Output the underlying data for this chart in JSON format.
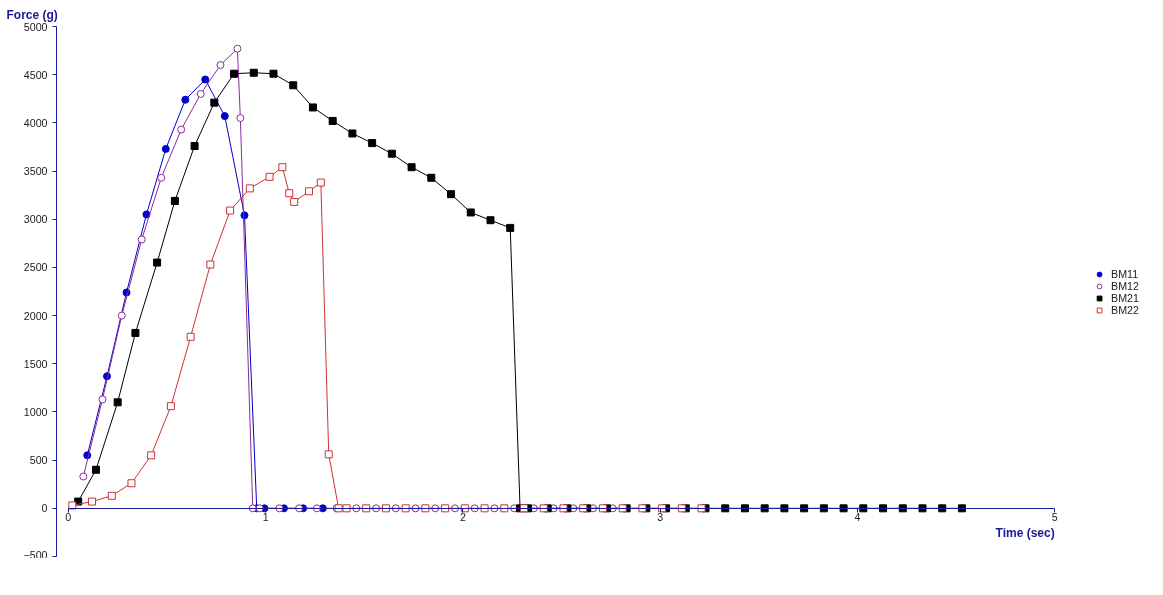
{
  "chart_data": {
    "type": "line",
    "xlabel": "Time (sec)",
    "ylabel": "Force (g)",
    "xlim": [
      0,
      5
    ],
    "ylim": [
      -500,
      5000
    ],
    "xticks": [
      0,
      1,
      2,
      3,
      4,
      5
    ],
    "yticks": [
      -500,
      0,
      500,
      1000,
      1500,
      2000,
      2500,
      3000,
      3500,
      4000,
      4500,
      5000
    ],
    "grid": false,
    "legend": "right",
    "series": [
      {
        "name": "BM11",
        "color": "#0000cc",
        "marker": "circle",
        "x": [
          0.096,
          0.196,
          0.295,
          0.396,
          0.494,
          0.593,
          0.694,
          0.793,
          0.893,
          0.955,
          0.994,
          1.093,
          1.19,
          1.29
        ],
        "values": [
          550,
          1370,
          2240,
          3050,
          3730,
          4240,
          4450,
          4070,
          3040,
          0,
          0,
          0,
          0,
          0
        ]
      },
      {
        "name": "BM12",
        "color": "#8b2c9b",
        "marker": "circle_open",
        "x": [
          0.076,
          0.173,
          0.271,
          0.372,
          0.471,
          0.572,
          0.671,
          0.771,
          0.857,
          0.872,
          0.935,
          0.97,
          1.07,
          1.17,
          1.26,
          1.36,
          1.46,
          1.56,
          1.66,
          1.76,
          1.86,
          1.96,
          2.06,
          2.16,
          2.26,
          2.36,
          2.46,
          2.56,
          2.66,
          2.76
        ],
        "values": [
          330,
          1130,
          2000,
          2790,
          3430,
          3930,
          4300,
          4600,
          4770,
          4050,
          0,
          0,
          0,
          0,
          0,
          0,
          0,
          0,
          0,
          0,
          0,
          0,
          0,
          0,
          0,
          0,
          0,
          0,
          0,
          0
        ]
      },
      {
        "name": "BM21",
        "color": "#000000",
        "marker": "square",
        "x": [
          0.05,
          0.14,
          0.25,
          0.34,
          0.45,
          0.54,
          0.64,
          0.74,
          0.84,
          0.94,
          1.04,
          1.14,
          1.24,
          1.34,
          1.44,
          1.54,
          1.64,
          1.74,
          1.84,
          1.94,
          2.04,
          2.14,
          2.24,
          2.29,
          2.33,
          2.43,
          2.53,
          2.63,
          2.73,
          2.83,
          2.93,
          3.03,
          3.13,
          3.23,
          3.33,
          3.43,
          3.53,
          3.63,
          3.73,
          3.83,
          3.93,
          4.03,
          4.13,
          4.23,
          4.33,
          4.43,
          4.53
        ],
        "values": [
          70,
          400,
          1100,
          1820,
          2550,
          3190,
          3760,
          4210,
          4510,
          4520,
          4510,
          4390,
          4160,
          4020,
          3890,
          3790,
          3680,
          3540,
          3430,
          3260,
          3070,
          2990,
          2910,
          0,
          0,
          0,
          0,
          0,
          0,
          0,
          0,
          0,
          0,
          0,
          0,
          0,
          0,
          0,
          0,
          0,
          0,
          0,
          0,
          0,
          0,
          0,
          0
        ]
      },
      {
        "name": "BM22",
        "color": "#cc3333",
        "marker": "square_open",
        "x": [
          0.02,
          0.12,
          0.22,
          0.32,
          0.42,
          0.52,
          0.62,
          0.72,
          0.82,
          0.92,
          1.02,
          1.085,
          1.12,
          1.145,
          1.22,
          1.28,
          1.32,
          1.37,
          1.41,
          1.51,
          1.61,
          1.71,
          1.81,
          1.91,
          2.01,
          2.11,
          2.21,
          2.31,
          2.41,
          2.51,
          2.61,
          2.71,
          2.81,
          2.91,
          3.01,
          3.11,
          3.21
        ],
        "values": [
          30,
          70,
          130,
          260,
          550,
          1060,
          1780,
          2530,
          3090,
          3320,
          3440,
          3540,
          3270,
          3180,
          3290,
          3380,
          560,
          0,
          0,
          0,
          0,
          0,
          0,
          0,
          0,
          0,
          0,
          0,
          0,
          0,
          0,
          0,
          0,
          0,
          0,
          0,
          0
        ]
      }
    ]
  }
}
